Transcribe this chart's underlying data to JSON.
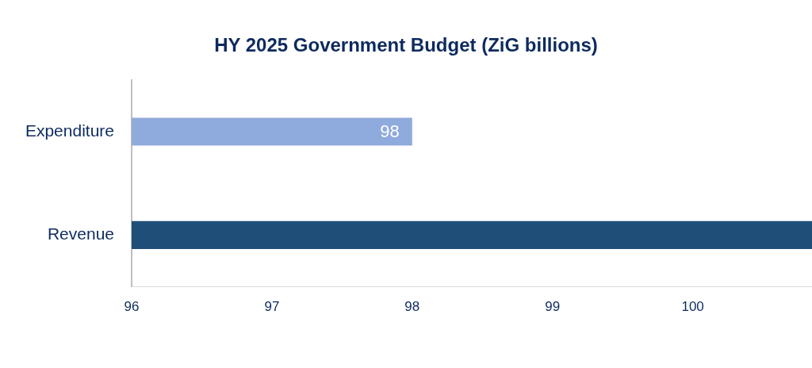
{
  "chart_data": {
    "type": "bar",
    "orientation": "horizontal",
    "title": "HY 2025 Government Budget (ZiG billions)",
    "categories": [
      "Expenditure",
      "Revenue"
    ],
    "values": [
      98,
      100.85
    ],
    "colors": [
      "#8faadc",
      "#1f4e79"
    ],
    "value_labels": [
      "98",
      null
    ],
    "xlim": [
      96,
      100.85
    ],
    "xticks": [
      96,
      97,
      98,
      99,
      100
    ],
    "grid": false,
    "legend": false
  }
}
